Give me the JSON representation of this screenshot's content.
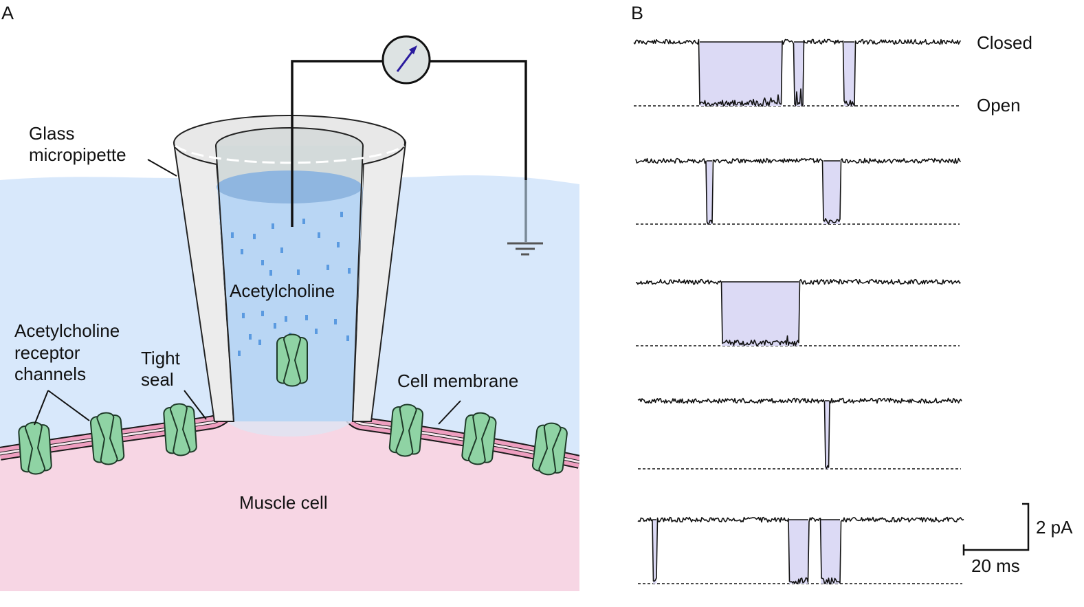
{
  "panel_a": {
    "letter": "A",
    "labels": {
      "pipette_line1": "Glass",
      "pipette_line2": "micropipette",
      "acetylcholine": "Acetylcholine",
      "receptor_line1": "Acetylcholine",
      "receptor_line2": "receptor",
      "receptor_line3": "channels",
      "seal_line1": "Tight",
      "seal_line2": "seal",
      "membrane": "Cell membrane",
      "muscle": "Muscle cell"
    },
    "icons": [
      "current-meter-icon",
      "ground-icon",
      "receptor-channel-icon"
    ],
    "colors": {
      "bath": "#d8e8fb",
      "muscle": "#f7d6e4",
      "membrane": "#ef9fc0",
      "receptor": "#8fd3a4",
      "solution": "#b9d6f4",
      "ach_dots": "#5a9ae0",
      "pipette": "#ececec",
      "meter_needle": "#2a1b9e"
    }
  },
  "panel_b": {
    "letter": "B",
    "closed_label": "Closed",
    "open_label": "Open",
    "scale_current": "2 pA",
    "scale_time": "20 ms",
    "trace_count": 5,
    "colors": {
      "open_fill": "#dcdaf5",
      "trace": "#111111"
    }
  }
}
